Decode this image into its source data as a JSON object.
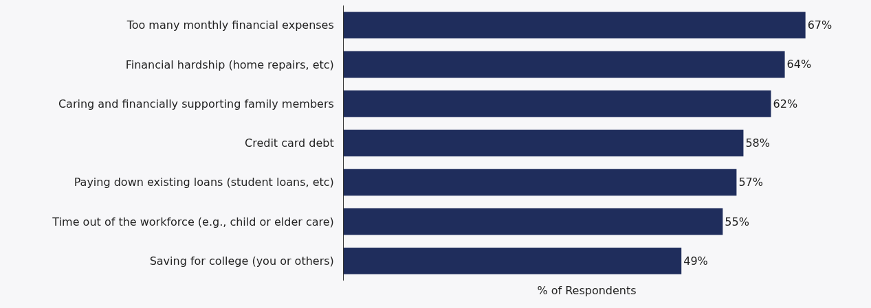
{
  "chart_data": {
    "type": "bar",
    "orientation": "horizontal",
    "xlabel": "% of Respondents",
    "categories": [
      "Too many monthly financial expenses",
      "Financial hardship (home repairs, etc)",
      "Caring and financially supporting family members",
      "Credit card debt",
      "Paying down existing loans (student loans, etc)",
      "Time out of the workforce (e.g., child or elder care)",
      "Saving for college (you or others)"
    ],
    "values": [
      67,
      64,
      62,
      58,
      57,
      55,
      49
    ],
    "value_labels": [
      "67%",
      "64%",
      "62%",
      "58%",
      "57%",
      "55%",
      "49%"
    ],
    "color": "#1f2d5c",
    "tick_labels": "y"
  }
}
